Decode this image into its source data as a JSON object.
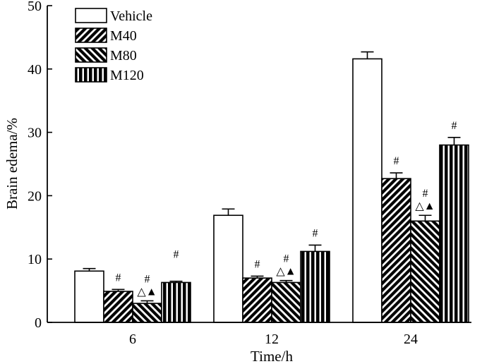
{
  "chart_data": {
    "type": "bar",
    "title": "",
    "xlabel": "Time/h",
    "ylabel": "Brain edema/%",
    "ylim": [
      0,
      50
    ],
    "yticks": [
      0,
      10,
      20,
      30,
      40,
      50
    ],
    "categories": [
      "6",
      "12",
      "24"
    ],
    "legend_position": "top-left",
    "series": [
      {
        "name": "Vehicle",
        "pattern": "white",
        "values": [
          8.1,
          16.9,
          41.6
        ],
        "errors": [
          0.4,
          1.0,
          1.1
        ],
        "annotations": [
          "",
          "",
          ""
        ]
      },
      {
        "name": "M40",
        "pattern": "hatch-forward",
        "values": [
          4.9,
          7.0,
          22.7
        ],
        "errors": [
          0.3,
          0.3,
          0.9
        ],
        "annotations": [
          "#",
          "#",
          "#"
        ]
      },
      {
        "name": "M80",
        "pattern": "hatch-backward",
        "values": [
          3.0,
          6.3,
          16.0
        ],
        "errors": [
          0.4,
          0.3,
          0.9
        ],
        "annotations": [
          "#△▲",
          "#△▲",
          "#△▲"
        ]
      },
      {
        "name": "M120",
        "pattern": "vertical-stripes",
        "values": [
          6.3,
          11.2,
          28.0
        ],
        "errors": [
          0.2,
          1.0,
          1.2
        ],
        "annotations": [
          "#",
          "#",
          "#"
        ]
      }
    ]
  }
}
